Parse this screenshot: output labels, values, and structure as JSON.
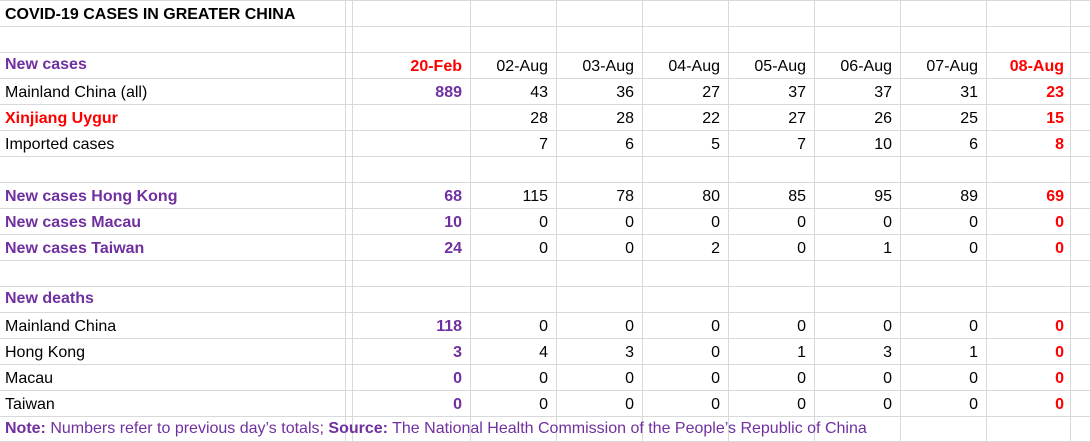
{
  "title": "COVID-19 CASES IN GREATER CHINA",
  "header": {
    "label": "New cases",
    "dates": [
      "20-Feb",
      "02-Aug",
      "03-Aug",
      "04-Aug",
      "05-Aug",
      "06-Aug",
      "07-Aug",
      "08-Aug"
    ]
  },
  "section_cases": [
    {
      "label": "Mainland China (all)",
      "values": [
        "889",
        "43",
        "36",
        "27",
        "37",
        "37",
        "31",
        "23"
      ]
    },
    {
      "label": "Xinjiang Uygur",
      "values": [
        "",
        "28",
        "28",
        "22",
        "27",
        "26",
        "25",
        "15"
      ]
    },
    {
      "label": "Imported cases",
      "values": [
        "",
        "7",
        "6",
        "5",
        "7",
        "10",
        "6",
        "8"
      ]
    }
  ],
  "section_regions": [
    {
      "label": "New cases Hong Kong",
      "values": [
        "68",
        "115",
        "78",
        "80",
        "85",
        "95",
        "89",
        "69"
      ]
    },
    {
      "label": "New cases Macau",
      "values": [
        "10",
        "0",
        "0",
        "0",
        "0",
        "0",
        "0",
        "0"
      ]
    },
    {
      "label": "New cases Taiwan",
      "values": [
        "24",
        "0",
        "0",
        "2",
        "0",
        "1",
        "0",
        "0"
      ]
    }
  ],
  "deaths_header": "New deaths",
  "section_deaths": [
    {
      "label": "Mainland China",
      "values": [
        "118",
        "0",
        "0",
        "0",
        "0",
        "0",
        "0",
        "0"
      ]
    },
    {
      "label": "Hong Kong",
      "values": [
        "3",
        "4",
        "3",
        "0",
        "1",
        "3",
        "1",
        "0"
      ]
    },
    {
      "label": "Macau",
      "values": [
        "0",
        "0",
        "0",
        "0",
        "0",
        "0",
        "0",
        "0"
      ]
    },
    {
      "label": "Taiwan",
      "values": [
        "0",
        "0",
        "0",
        "0",
        "0",
        "0",
        "0",
        "0"
      ]
    }
  ],
  "note": {
    "note_label": "Note:",
    "note_text": " Numbers refer to previous day’s totals; ",
    "source_label": "Source:",
    "source_text": " The National Health Commission of the People’s Republic of China"
  },
  "colors": {
    "purple": "#7030a0",
    "red": "#ff0000",
    "grid": "#d9d9d9"
  }
}
